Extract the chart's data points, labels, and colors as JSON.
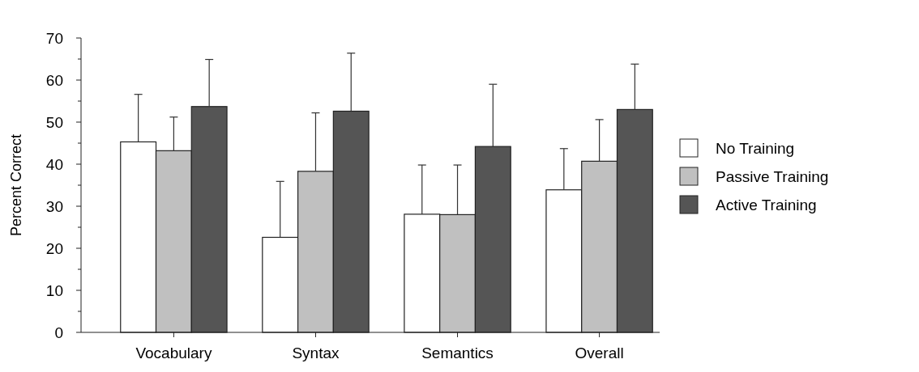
{
  "chart_data": {
    "type": "bar",
    "ylabel": "Percent Correct",
    "categories": [
      "Vocabulary",
      "Syntax",
      "Semantics",
      "Overall"
    ],
    "series": [
      {
        "name": "No Training",
        "color": "#ffffff",
        "values": [
          45.3,
          22.6,
          28.1,
          33.9
        ],
        "errors": [
          [
            45.3,
            56.6
          ],
          [
            22.6,
            35.9
          ],
          [
            28.1,
            39.8
          ],
          [
            33.9,
            43.7
          ]
        ]
      },
      {
        "name": "Passive Training",
        "color": "#c0c0c0",
        "values": [
          43.2,
          38.3,
          28,
          40.7
        ],
        "errors": [
          [
            43.2,
            51.2
          ],
          [
            38.3,
            52.2
          ],
          [
            28,
            39.8
          ],
          [
            40.7,
            50.6
          ]
        ]
      },
      {
        "name": "Active Training",
        "color": "#555555",
        "values": [
          53.7,
          52.6,
          44.2,
          53
        ],
        "errors": [
          [
            53.7,
            64.9
          ],
          [
            52.6,
            66.4
          ],
          [
            44.2,
            59
          ],
          [
            53,
            63.8
          ]
        ]
      }
    ],
    "ylim": [
      0,
      70
    ],
    "yticks": [
      0,
      {
        "value": 5,
        "label": null
      },
      10,
      {
        "value": 15,
        "label": null
      },
      20,
      {
        "value": 25,
        "label": null
      },
      30,
      {
        "value": 35,
        "label": null
      },
      40,
      {
        "value": 45,
        "label": null
      },
      50,
      {
        "value": 55,
        "label": null
      },
      60,
      {
        "value": 65,
        "label": null
      },
      70
    ],
    "grid": false,
    "legend": "right"
  }
}
